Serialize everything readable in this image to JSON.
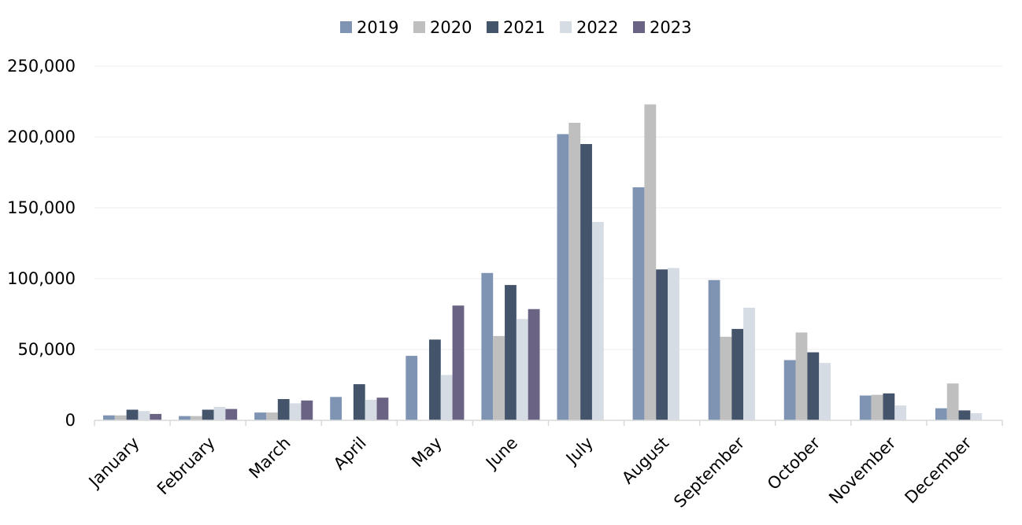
{
  "chart_data": {
    "type": "bar",
    "title": "",
    "xlabel": "",
    "ylabel": "",
    "ylim": [
      0,
      250000
    ],
    "yticks": [
      0,
      50000,
      100000,
      150000,
      200000,
      250000
    ],
    "ytick_labels": [
      "0",
      "50,000",
      "100,000",
      "150,000",
      "200,000",
      "250,000"
    ],
    "grid": true,
    "legend_position": "top-center",
    "categories": [
      "January",
      "February",
      "March",
      "April",
      "May",
      "June",
      "July",
      "August",
      "September",
      "October",
      "November",
      "December"
    ],
    "series": [
      {
        "name": "2019",
        "color": "#7f93b3",
        "values": [
          3500,
          3000,
          5500,
          16500,
          45500,
          104000,
          202000,
          164500,
          99000,
          42500,
          17500,
          8500
        ]
      },
      {
        "name": "2020",
        "color": "#bfbfbf",
        "values": [
          3500,
          3000,
          5500,
          null,
          null,
          59500,
          210000,
          223000,
          59000,
          62000,
          18000,
          26000
        ]
      },
      {
        "name": "2021",
        "color": "#44546a",
        "values": [
          7500,
          7500,
          15000,
          25500,
          57000,
          95500,
          195000,
          106500,
          64500,
          48000,
          19000,
          7000
        ]
      },
      {
        "name": "2022",
        "color": "#d6dce4",
        "values": [
          6500,
          9500,
          12000,
          14500,
          32000,
          71500,
          140000,
          107500,
          79500,
          40500,
          10500,
          5000
        ]
      },
      {
        "name": "2023",
        "color": "#6a6384",
        "values": [
          4500,
          8000,
          14000,
          16000,
          81000,
          78500,
          null,
          null,
          null,
          null,
          null,
          null
        ]
      }
    ]
  }
}
